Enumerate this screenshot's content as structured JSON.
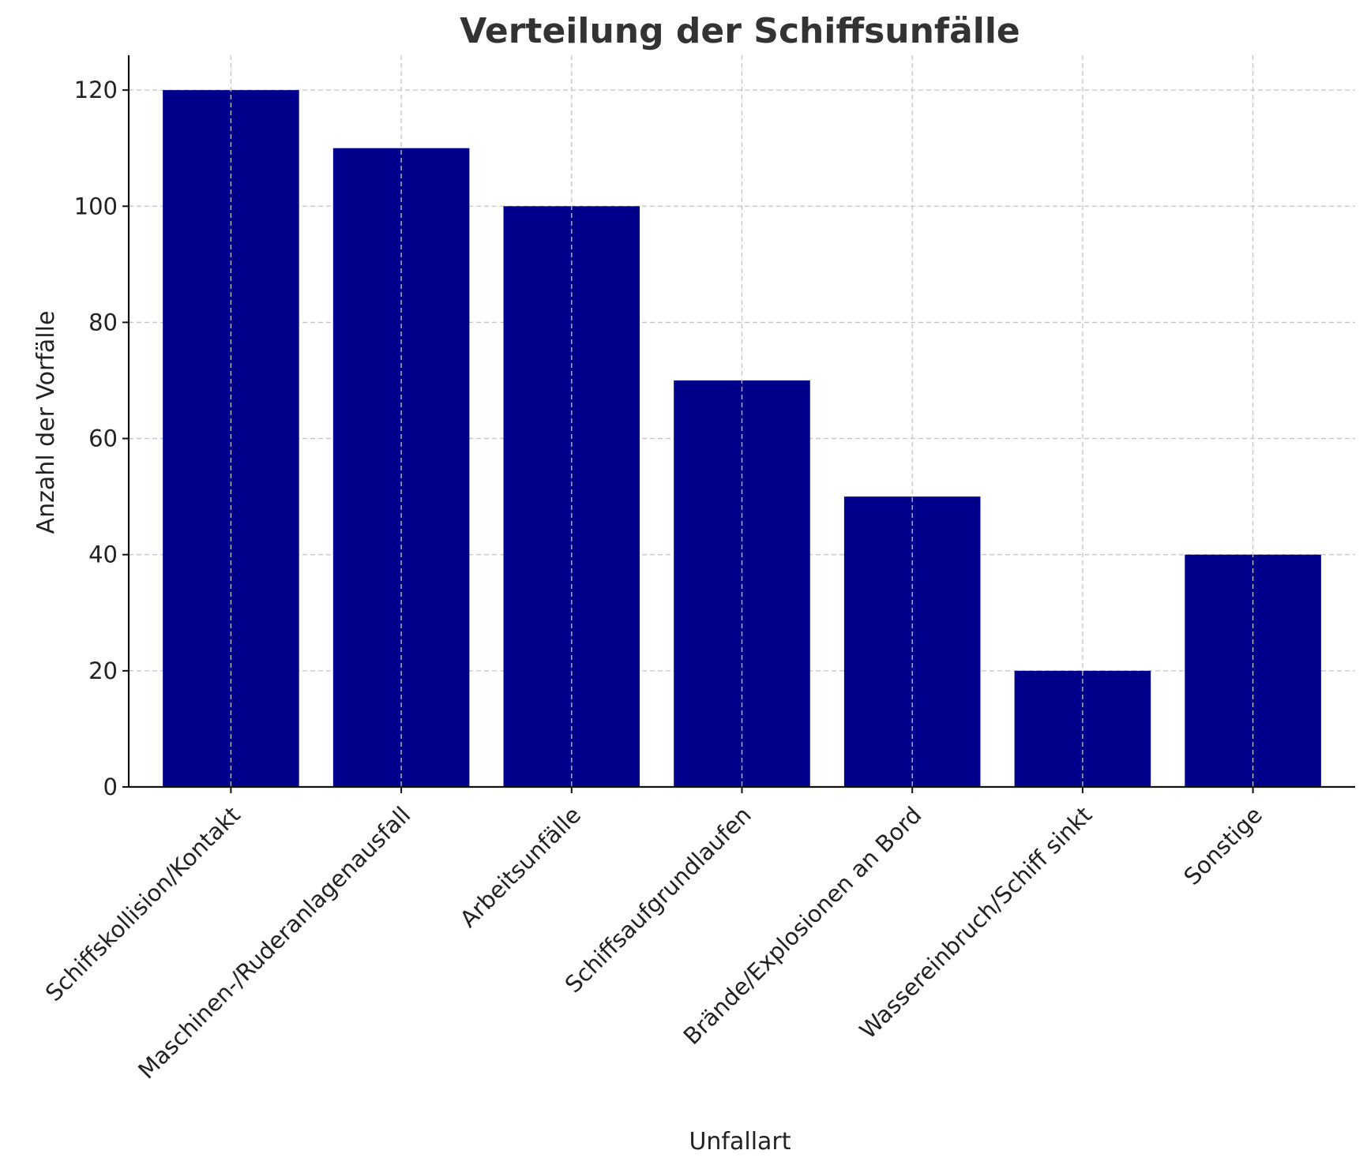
{
  "chart_data": {
    "type": "bar",
    "title": "Verteilung der Schiffsunfälle",
    "xlabel": "Unfallart",
    "ylabel": "Anzahl der Vorfälle",
    "categories": [
      "Schiffskollision/Kontakt",
      "Maschinen-/Ruderanlagenausfall",
      "Arbeitsunfälle",
      "Schiffsaufgrundlaufen",
      "Brände/Explosionen an Bord",
      "Wassereinbruch/Schiff sinkt",
      "Sonstige"
    ],
    "values": [
      120,
      110,
      100,
      70,
      50,
      20,
      40
    ],
    "yticks": [
      0,
      20,
      40,
      60,
      80,
      100,
      120
    ],
    "ylim": [
      0,
      126
    ],
    "grid": true,
    "colors": {
      "bar": "#00008B"
    }
  }
}
